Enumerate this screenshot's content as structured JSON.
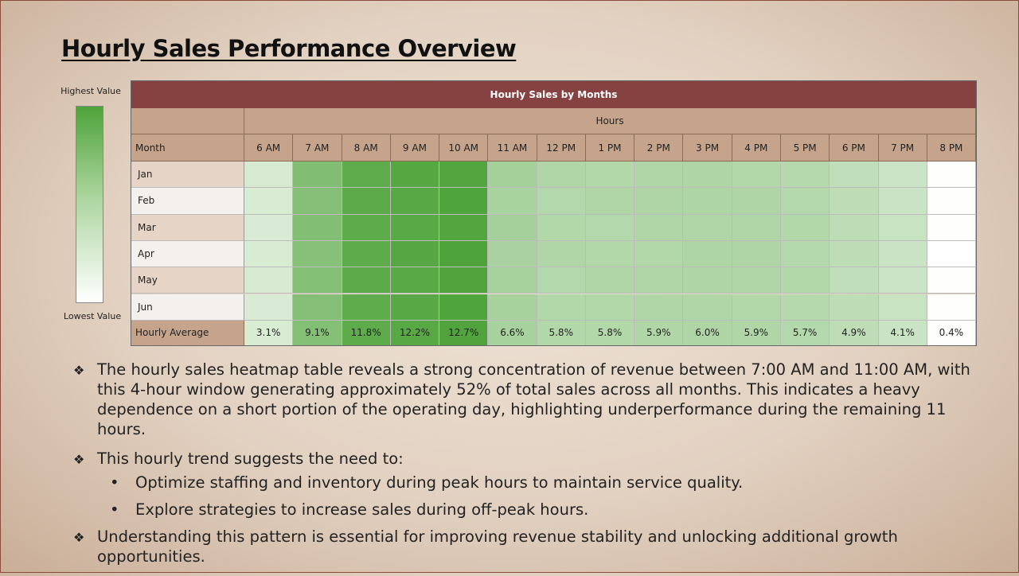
{
  "slide": {
    "title": "Hourly Sales Performance Overview",
    "legend": {
      "high": "Highest Value",
      "low": "Lowest Value",
      "high_color": "#4ea33a",
      "low_color": "#ffffff"
    }
  },
  "chart_data": {
    "type": "heatmap",
    "title": "Hourly Sales by Months",
    "xlabel": "Hours",
    "ylabel": "Month",
    "categories": [
      "6 AM",
      "7 AM",
      "8 AM",
      "9 AM",
      "10 AM",
      "11 AM",
      "12 PM",
      "1 PM",
      "2 PM",
      "3 PM",
      "4 PM",
      "5 PM",
      "6 PM",
      "7 PM",
      "8 PM"
    ],
    "rows": [
      "Jan",
      "Feb",
      "Mar",
      "Apr",
      "May",
      "Jun"
    ],
    "values": [
      [
        3.2,
        9.3,
        11.7,
        12.4,
        12.6,
        6.8,
        5.9,
        5.8,
        5.9,
        6.0,
        5.8,
        5.6,
        4.8,
        4.0,
        0.4
      ],
      [
        3.1,
        9.0,
        11.9,
        12.2,
        12.8,
        6.5,
        5.7,
        5.9,
        6.0,
        6.1,
        6.0,
        5.7,
        4.9,
        4.1,
        0.4
      ],
      [
        3.0,
        9.2,
        11.8,
        12.1,
        12.6,
        6.7,
        5.8,
        5.7,
        5.9,
        5.9,
        5.9,
        5.8,
        5.0,
        4.2,
        0.4
      ],
      [
        3.1,
        8.9,
        11.8,
        12.3,
        12.9,
        6.4,
        5.9,
        5.8,
        5.8,
        6.1,
        6.0,
        5.7,
        4.9,
        4.1,
        0.3
      ],
      [
        3.2,
        9.1,
        11.9,
        12.1,
        12.7,
        6.6,
        5.7,
        5.9,
        5.9,
        6.0,
        5.9,
        5.8,
        4.8,
        4.0,
        0.4
      ],
      [
        3.0,
        9.0,
        11.7,
        12.2,
        12.8,
        6.6,
        5.8,
        5.8,
        5.9,
        5.9,
        5.8,
        5.6,
        5.0,
        4.2,
        0.4
      ]
    ],
    "summary_label": "Hourly Average",
    "summary": [
      "3.1%",
      "9.1%",
      "11.8%",
      "12.2%",
      "12.7%",
      "6.6%",
      "5.8%",
      "5.8%",
      "5.9%",
      "6.0%",
      "5.9%",
      "5.7%",
      "4.9%",
      "4.1%",
      "0.4%"
    ],
    "summary_values": [
      3.1,
      9.1,
      11.8,
      12.2,
      12.7,
      6.6,
      5.8,
      5.8,
      5.9,
      6.0,
      5.9,
      5.7,
      4.9,
      4.1,
      0.4
    ],
    "color_scale": {
      "low": "#ffffff",
      "high": "#4ea33a"
    },
    "header_color": "#864241",
    "legend": "left"
  },
  "notes": {
    "p1": "The hourly sales heatmap table reveals a strong concentration of revenue between 7:00 AM and 11:00 AM, with this 4-hour window generating approximately 52% of total sales across all months. This indicates a heavy dependence on a short portion of the operating day, highlighting underperformance during the remaining 11 hours.",
    "p2": "This hourly trend suggests the need to:",
    "s1": "Optimize staffing and inventory during peak hours to maintain service quality.",
    "s2": "Explore strategies to increase sales during off-peak hours.",
    "p3": "Understanding this pattern is essential for improving revenue stability and unlocking additional growth opportunities.",
    "bullet": "❖",
    "dot": "•"
  }
}
